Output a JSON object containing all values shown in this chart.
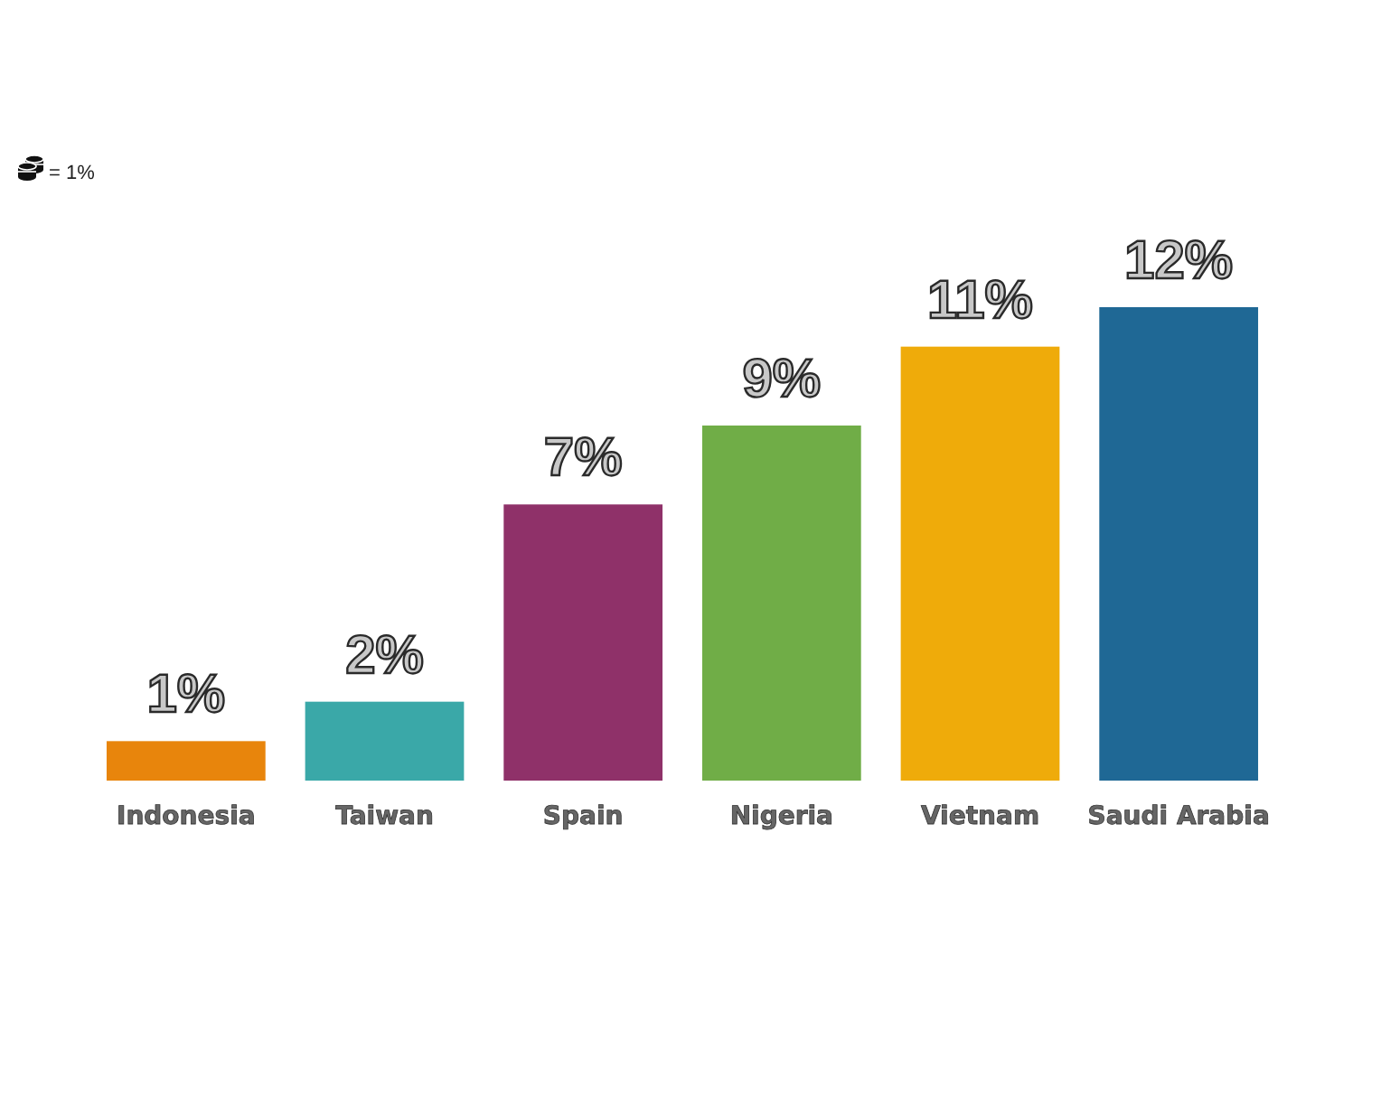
{
  "chart_data": {
    "type": "bar",
    "categories": [
      "Indonesia",
      "Taiwan",
      "Spain",
      "Nigeria",
      "Vietnam",
      "Saudi Arabia"
    ],
    "values": [
      1,
      2,
      7,
      9,
      11,
      12
    ],
    "colors": [
      "#e8850c",
      "#3aa8a8",
      "#8f3169",
      "#70ad47",
      "#efab0a",
      "#1f6895"
    ],
    "value_labels": [
      "1%",
      "2%",
      "7%",
      "9%",
      "11%",
      "12%"
    ],
    "annotations": [
      "= 1%"
    ]
  }
}
